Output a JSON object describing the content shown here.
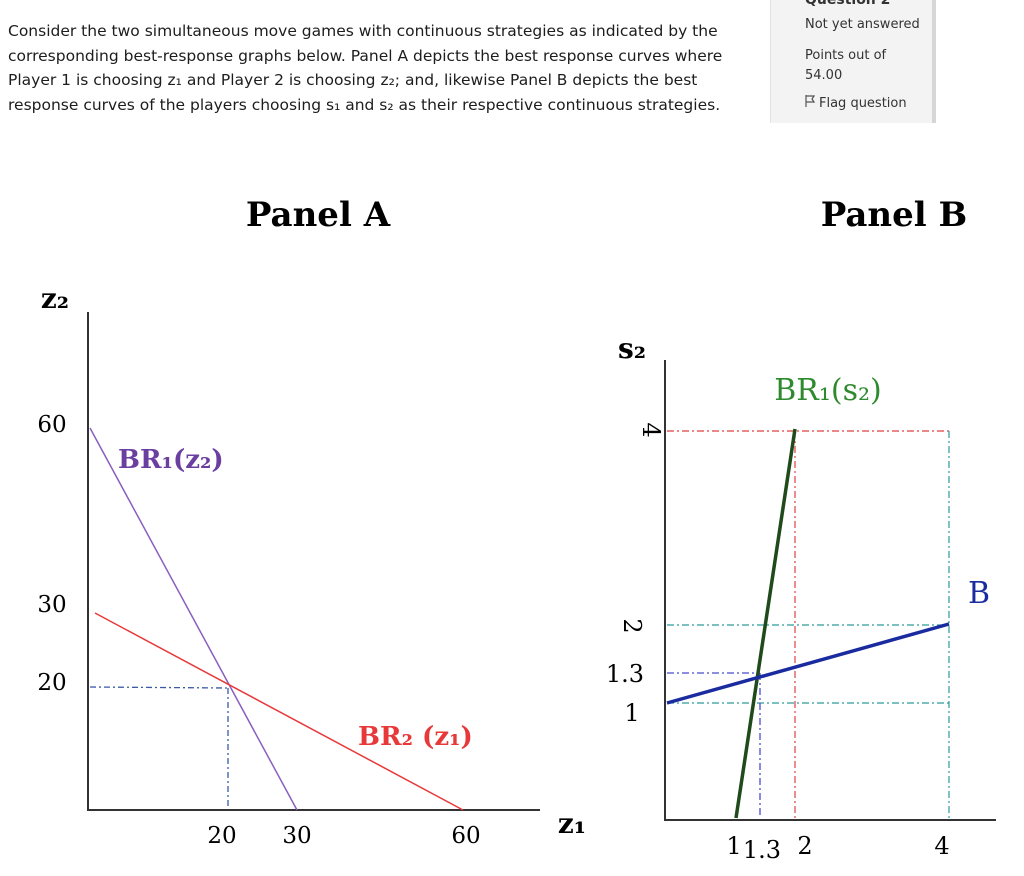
{
  "question": {
    "text": "Consider the two simultaneous move games with continuous strategies as indicated by the corresponding best-response graphs below. Panel A depicts the best response curves where Player 1 is choosing z₁ and Player 2 is choosing z₂; and, likewise Panel B depicts the best response curves of the players choosing s₁ and s₂ as their respective continuous strategies."
  },
  "info": {
    "title": "Question 2",
    "status": "Not yet answered",
    "points_label": "Points out of",
    "points_value": "54.00",
    "flag_label": "Flag question",
    "flag_icon": "flag-icon"
  },
  "panel_a": {
    "title": "Panel A",
    "y_axis_label": "z₂",
    "x_axis_label": "z₁",
    "y_ticks": [
      "60",
      "30",
      "20"
    ],
    "x_ticks": [
      "20",
      "30",
      "60"
    ],
    "br1_label": "BR₁(z₂)",
    "br2_label": "BR₂ (z₁)",
    "colors": {
      "br1": "#8a5fbf",
      "br2": "#e8393a",
      "guide": "#3a5aa8"
    }
  },
  "panel_b": {
    "title": "Panel B",
    "y_axis_label": "s₂",
    "y_ticks": [
      "4",
      "2",
      "1.3",
      "1"
    ],
    "x_ticks": [
      "1",
      "1.3",
      "2",
      "4"
    ],
    "br1_label": "BR₁(s₂)",
    "br2_label_partial": "B",
    "colors": {
      "br1": "#1f4a1a",
      "br2": "#1a2ba0",
      "guide_red": "#e04040",
      "guide_teal": "#2f9a9a",
      "guide_blue": "#4a4acc"
    }
  }
}
